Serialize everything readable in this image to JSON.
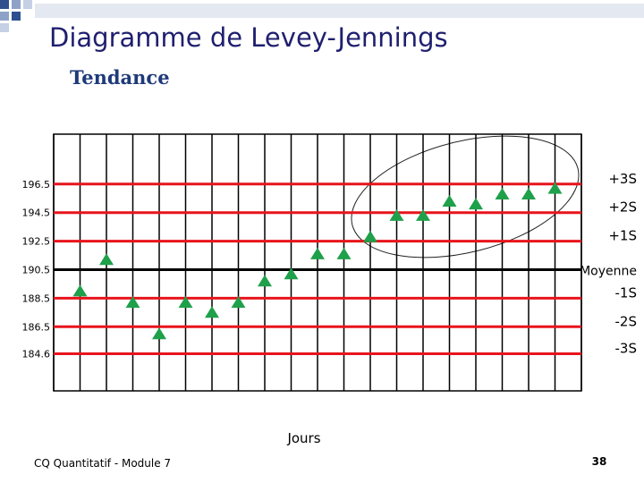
{
  "slide": {
    "title": "Diagramme de Levey-Jennings",
    "footer": "CQ Quantitatif  - Module 7",
    "page": "38"
  },
  "chart_data": {
    "type": "scatter",
    "title": "Tendance",
    "x_label": "Jours",
    "x": [
      1,
      2,
      3,
      4,
      5,
      6,
      7,
      8,
      9,
      10,
      11,
      12,
      13,
      14,
      15,
      16,
      17,
      18,
      19
    ],
    "series": [
      {
        "color": "#1fa04a",
        "values": [
          189.0,
          191.2,
          188.2,
          186.0,
          188.2,
          187.5,
          188.2,
          189.7,
          190.2,
          191.6,
          191.6,
          192.8,
          194.3,
          194.3,
          195.3,
          195.1,
          195.8,
          195.8,
          196.2
        ]
      }
    ],
    "xlim": [
      0,
      20
    ],
    "xticks": [
      0,
      1,
      2,
      3,
      4,
      5,
      6,
      7,
      8,
      9,
      10,
      11,
      12,
      13,
      14,
      15,
      16,
      17,
      18,
      19,
      20
    ],
    "ylim": [
      182,
      200
    ],
    "yticks": [
      196.5,
      194.5,
      192.5,
      190.5,
      188.5,
      186.5,
      184.6
    ],
    "reference_lines": [
      {
        "value": 196.5,
        "label": "+3S",
        "color": "#e8141c"
      },
      {
        "value": 194.5,
        "label": "+2S",
        "color": "#e8141c"
      },
      {
        "value": 192.5,
        "label": "+1S",
        "color": "#e8141c"
      },
      {
        "value": 190.5,
        "label": "Moyenne",
        "color": "#000000"
      },
      {
        "value": 188.5,
        "label": "-1S",
        "color": "#e8141c"
      },
      {
        "value": 186.5,
        "label": "-2S",
        "color": "#e8141c"
      },
      {
        "value": 184.6,
        "label": "-3S",
        "color": "#e8141c"
      }
    ]
  }
}
